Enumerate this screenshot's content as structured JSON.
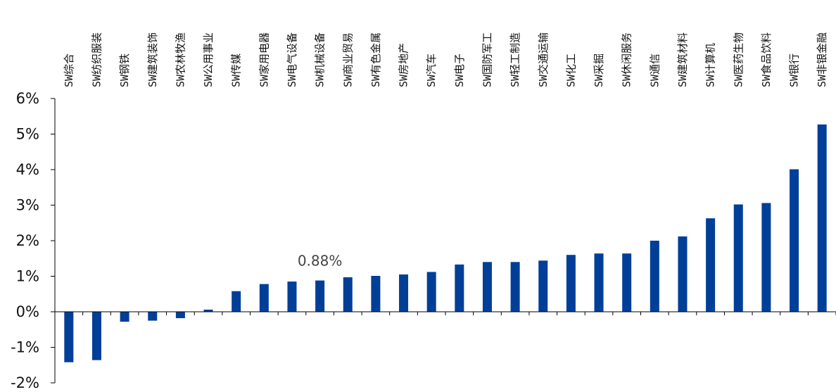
{
  "chart_data": {
    "type": "bar",
    "title": "",
    "xlabel": "",
    "ylabel": "",
    "categories": [
      "SW综合",
      "SW纺织服装",
      "SW钢铁",
      "SW建筑装饰",
      "SW农林牧渔",
      "SW公用事业",
      "SW传媒",
      "SW家用电器",
      "SW电气设备",
      "SW机械设备",
      "SW商业贸易",
      "SW有色金属",
      "SW房地产",
      "SW汽车",
      "SW电子",
      "SW国防军工",
      "SW轻工制造",
      "SW交通运输",
      "SW化工",
      "SW采掘",
      "SW休闲服务",
      "SW通信",
      "SW建筑材料",
      "SW计算机",
      "SW医药生物",
      "SW食品饮料",
      "SW银行",
      "SW非银金融"
    ],
    "values": [
      -1.42,
      -1.36,
      -0.28,
      -0.25,
      -0.18,
      0.06,
      0.58,
      0.78,
      0.85,
      0.88,
      0.97,
      1.01,
      1.05,
      1.12,
      1.33,
      1.4,
      1.4,
      1.44,
      1.6,
      1.64,
      1.64,
      2.0,
      2.12,
      2.63,
      3.02,
      3.06,
      4.01,
      5.27
    ],
    "ylim": [
      -2,
      6
    ],
    "yticks": [
      -2,
      -1,
      0,
      1,
      2,
      3,
      4,
      5,
      6
    ],
    "ytick_format": "percent",
    "grid": false,
    "legend": "none",
    "bar_color": "#003F98",
    "axis_color": "#000000",
    "annotations": [
      {
        "text": "0.88%",
        "category": "SW机械设备"
      }
    ]
  }
}
